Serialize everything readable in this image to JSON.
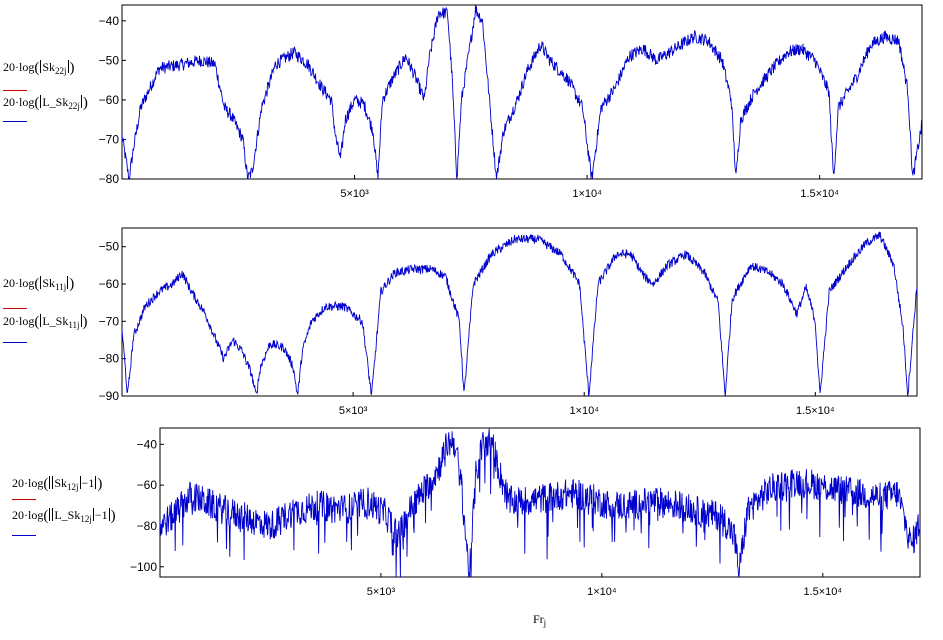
{
  "colors": {
    "series_a": "#cc0000",
    "series_b": "#0000cc",
    "axis": "#000000"
  },
  "x_axis_name": {
    "base": "Fr",
    "sub": "j"
  },
  "chart_data": [
    {
      "type": "line",
      "xlim": [
        0,
        17200
      ],
      "ylim": [
        -80,
        -36
      ],
      "yticks": [
        -80,
        -70,
        -60,
        -50,
        -40
      ],
      "xticks": [
        5000,
        10000,
        15000
      ],
      "xtick_labels": [
        "5×10³",
        "1×10⁴",
        "1.5×10⁴"
      ],
      "legend": [
        {
          "prefix": "20·log",
          "name": "Sk",
          "sub": "22",
          "idx": "j",
          "color_key": "series_a"
        },
        {
          "prefix": "20·log",
          "name": "L_Sk",
          "sub": "22",
          "idx": "j",
          "color_key": "series_b"
        }
      ],
      "series_b": {
        "anchors": [
          [
            0,
            -69
          ],
          [
            150,
            -80
          ],
          [
            250,
            -72
          ],
          [
            400,
            -62
          ],
          [
            800,
            -52
          ],
          [
            1300,
            -51
          ],
          [
            1700,
            -50
          ],
          [
            2000,
            -51
          ],
          [
            2200,
            -62
          ],
          [
            2350,
            -64
          ],
          [
            2600,
            -70
          ],
          [
            2700,
            -80
          ],
          [
            2800,
            -78
          ],
          [
            3000,
            -62
          ],
          [
            3300,
            -51
          ],
          [
            3700,
            -48
          ],
          [
            4000,
            -51
          ],
          [
            4300,
            -57
          ],
          [
            4500,
            -60
          ],
          [
            4600,
            -70
          ],
          [
            4700,
            -75
          ],
          [
            4800,
            -65
          ],
          [
            5000,
            -60
          ],
          [
            5200,
            -61
          ],
          [
            5400,
            -68
          ],
          [
            5500,
            -80
          ],
          [
            5600,
            -60
          ],
          [
            5800,
            -55
          ],
          [
            6100,
            -49
          ],
          [
            6300,
            -54
          ],
          [
            6500,
            -60
          ],
          [
            6600,
            -50
          ],
          [
            6800,
            -38
          ],
          [
            7000,
            -38
          ],
          [
            7100,
            -55
          ],
          [
            7200,
            -80
          ],
          [
            7300,
            -60
          ],
          [
            7500,
            -45
          ],
          [
            7600,
            -37
          ],
          [
            7750,
            -40
          ],
          [
            7900,
            -60
          ],
          [
            8050,
            -80
          ],
          [
            8200,
            -68
          ],
          [
            8500,
            -60
          ],
          [
            8700,
            -53
          ],
          [
            9000,
            -46
          ],
          [
            9200,
            -50
          ],
          [
            9600,
            -55
          ],
          [
            9900,
            -62
          ],
          [
            10100,
            -80
          ],
          [
            10300,
            -62
          ],
          [
            10600,
            -57
          ],
          [
            10900,
            -49
          ],
          [
            11200,
            -47
          ],
          [
            11500,
            -50
          ],
          [
            11900,
            -47
          ],
          [
            12300,
            -44
          ],
          [
            12600,
            -45
          ],
          [
            12900,
            -50
          ],
          [
            13100,
            -60
          ],
          [
            13200,
            -80
          ],
          [
            13300,
            -65
          ],
          [
            13600,
            -58
          ],
          [
            14000,
            -52
          ],
          [
            14300,
            -48
          ],
          [
            14600,
            -47
          ],
          [
            14900,
            -50
          ],
          [
            15200,
            -58
          ],
          [
            15300,
            -80
          ],
          [
            15400,
            -62
          ],
          [
            15800,
            -54
          ],
          [
            16100,
            -46
          ],
          [
            16400,
            -44
          ],
          [
            16700,
            -45
          ],
          [
            16900,
            -58
          ],
          [
            17000,
            -80
          ],
          [
            17200,
            -66
          ]
        ],
        "noise": 1.6
      }
    },
    {
      "type": "line",
      "xlim": [
        0,
        17200
      ],
      "ylim": [
        -90,
        -45
      ],
      "yticks": [
        -90,
        -80,
        -70,
        -60,
        -50
      ],
      "xticks": [
        5000,
        10000,
        15000
      ],
      "xtick_labels": [
        "5×10³",
        "1×10⁴",
        "1.5×10⁴"
      ],
      "legend": [
        {
          "prefix": "20·log",
          "name": "Sk",
          "sub": "11",
          "idx": "j",
          "color_key": "series_a"
        },
        {
          "prefix": "20·log",
          "name": "L_Sk",
          "sub": "11",
          "idx": "j",
          "color_key": "series_b"
        }
      ],
      "series_b": {
        "anchors": [
          [
            0,
            -72
          ],
          [
            120,
            -90
          ],
          [
            250,
            -74
          ],
          [
            500,
            -66
          ],
          [
            800,
            -62
          ],
          [
            1100,
            -60
          ],
          [
            1300,
            -57
          ],
          [
            1500,
            -62
          ],
          [
            1800,
            -68
          ],
          [
            2000,
            -74
          ],
          [
            2200,
            -80
          ],
          [
            2400,
            -75
          ],
          [
            2600,
            -78
          ],
          [
            2800,
            -84
          ],
          [
            2900,
            -90
          ],
          [
            3000,
            -82
          ],
          [
            3200,
            -76
          ],
          [
            3500,
            -77
          ],
          [
            3700,
            -82
          ],
          [
            3800,
            -90
          ],
          [
            3900,
            -78
          ],
          [
            4100,
            -70
          ],
          [
            4400,
            -66
          ],
          [
            4800,
            -66
          ],
          [
            5200,
            -70
          ],
          [
            5400,
            -90
          ],
          [
            5600,
            -62
          ],
          [
            5900,
            -57
          ],
          [
            6300,
            -56
          ],
          [
            6700,
            -56
          ],
          [
            7000,
            -58
          ],
          [
            7300,
            -70
          ],
          [
            7400,
            -90
          ],
          [
            7600,
            -60
          ],
          [
            8000,
            -52
          ],
          [
            8500,
            -48
          ],
          [
            9000,
            -48
          ],
          [
            9500,
            -52
          ],
          [
            9900,
            -60
          ],
          [
            10100,
            -90
          ],
          [
            10300,
            -60
          ],
          [
            10700,
            -52
          ],
          [
            11000,
            -52
          ],
          [
            11300,
            -58
          ],
          [
            11500,
            -60
          ],
          [
            11800,
            -55
          ],
          [
            12200,
            -52
          ],
          [
            12600,
            -57
          ],
          [
            12900,
            -65
          ],
          [
            13050,
            -90
          ],
          [
            13200,
            -64
          ],
          [
            13600,
            -55
          ],
          [
            14000,
            -57
          ],
          [
            14300,
            -60
          ],
          [
            14600,
            -68
          ],
          [
            14800,
            -61
          ],
          [
            15000,
            -70
          ],
          [
            15100,
            -90
          ],
          [
            15300,
            -62
          ],
          [
            15700,
            -55
          ],
          [
            16100,
            -49
          ],
          [
            16400,
            -47
          ],
          [
            16700,
            -55
          ],
          [
            16900,
            -72
          ],
          [
            17000,
            -90
          ],
          [
            17200,
            -60
          ]
        ],
        "noise": 1.2
      }
    },
    {
      "type": "line",
      "xlim": [
        0,
        17200
      ],
      "ylim": [
        -105,
        -32
      ],
      "yticks": [
        -100,
        -80,
        -60,
        -40
      ],
      "xticks": [
        5000,
        10000,
        15000
      ],
      "xtick_labels": [
        "5×10³",
        "1×10⁴",
        "1.5×10⁴"
      ],
      "legend": [
        {
          "prefix": "20·log",
          "name": "Sk",
          "sub": "12",
          "idx": "j",
          "color_key": "series_a",
          "minus_one": "−1"
        },
        {
          "prefix": "20·log",
          "name": "L_Sk",
          "sub": "12",
          "idx": "j",
          "color_key": "series_b",
          "minus_one": "−1"
        }
      ],
      "series_b": {
        "anchors": [
          [
            0,
            -80
          ],
          [
            300,
            -75
          ],
          [
            700,
            -65
          ],
          [
            1200,
            -70
          ],
          [
            1800,
            -75
          ],
          [
            2500,
            -80
          ],
          [
            3000,
            -73
          ],
          [
            3600,
            -70
          ],
          [
            4200,
            -72
          ],
          [
            4700,
            -68
          ],
          [
            5100,
            -74
          ],
          [
            5400,
            -85
          ],
          [
            5700,
            -70
          ],
          [
            6000,
            -62
          ],
          [
            6300,
            -52
          ],
          [
            6500,
            -40
          ],
          [
            6650,
            -38
          ],
          [
            6800,
            -55
          ],
          [
            7000,
            -105
          ],
          [
            7150,
            -55
          ],
          [
            7300,
            -40
          ],
          [
            7500,
            -38
          ],
          [
            7700,
            -55
          ],
          [
            7900,
            -68
          ],
          [
            8200,
            -68
          ],
          [
            8800,
            -66
          ],
          [
            9300,
            -64
          ],
          [
            9700,
            -66
          ],
          [
            10200,
            -70
          ],
          [
            10600,
            -70
          ],
          [
            11200,
            -68
          ],
          [
            11800,
            -70
          ],
          [
            12300,
            -74
          ],
          [
            12700,
            -75
          ],
          [
            13000,
            -85
          ],
          [
            13100,
            -103
          ],
          [
            13300,
            -72
          ],
          [
            13800,
            -62
          ],
          [
            14400,
            -58
          ],
          [
            14900,
            -60
          ],
          [
            15300,
            -62
          ],
          [
            15800,
            -64
          ],
          [
            16300,
            -66
          ],
          [
            16700,
            -64
          ],
          [
            17000,
            -90
          ],
          [
            17200,
            -78
          ]
        ],
        "noise": 7.5
      }
    }
  ]
}
